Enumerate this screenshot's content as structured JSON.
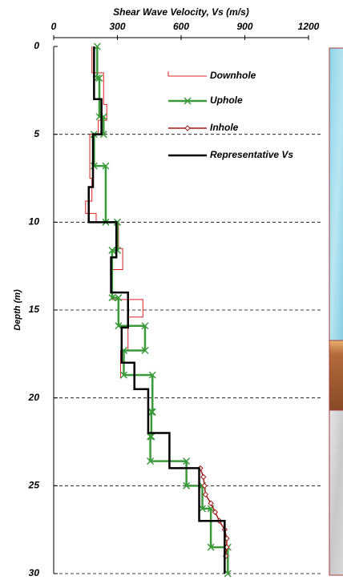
{
  "chart_data": {
    "type": "line",
    "title": "Shear Wave Velocity, Vs (m/s)",
    "y_label": "Depth (m)",
    "xlim": [
      0,
      1200
    ],
    "xticks": [
      0,
      300,
      600,
      900,
      1200
    ],
    "ylim": [
      0,
      30
    ],
    "yticks": [
      0,
      5,
      10,
      15,
      20,
      25,
      30
    ],
    "y_inverted": true,
    "x_axis_top": true,
    "grid": true,
    "legend": "upper right",
    "series": [
      {
        "name": "Downhole",
        "color": "#e02020",
        "width": 1,
        "marker": "none",
        "x": [
          180,
          180,
          235,
          235,
          250,
          250,
          210,
          210,
          170,
          170,
          180,
          180,
          150,
          150,
          200,
          200,
          305,
          305,
          325,
          325,
          275,
          275,
          420,
          420,
          350,
          350,
          315,
          315
        ],
        "y": [
          0,
          1.5,
          1.5,
          3.3,
          3.3,
          4.2,
          4.2,
          5,
          5,
          7.5,
          7.5,
          8.8,
          8.8,
          9.5,
          9.5,
          10,
          10,
          11.5,
          11.5,
          12.7,
          12.7,
          14.4,
          14.4,
          15.4,
          15.4,
          17.3,
          17.3,
          18.9
        ]
      },
      {
        "name": "Uphole",
        "color": "#3a9a3a",
        "width": 2.5,
        "marker": "x",
        "x": [
          205,
          205,
          215,
          215,
          235,
          235,
          190,
          190,
          245,
          245,
          300,
          300,
          275,
          275,
          305,
          305,
          430,
          430,
          330,
          330,
          465,
          465,
          460,
          460,
          455,
          455,
          625,
          625,
          700,
          700,
          740,
          740,
          820,
          820
        ],
        "y": [
          0,
          1.8,
          1.8,
          4,
          4,
          5,
          5,
          6.8,
          6.8,
          10,
          10,
          11.6,
          11.6,
          14.3,
          14.3,
          15.9,
          15.9,
          17.3,
          17.3,
          18.7,
          18.7,
          20.8,
          20.8,
          22.2,
          22.2,
          23.6,
          23.6,
          25,
          25,
          26.3,
          26.3,
          28.5,
          28.5,
          30
        ]
      },
      {
        "name": "Inhole",
        "color": "#a01818",
        "width": 1.5,
        "marker": "diamond",
        "x": [
          690,
          705,
          710,
          715,
          740,
          760,
          780,
          805,
          815,
          815,
          810
        ],
        "y": [
          24,
          24.5,
          25,
          25.5,
          26,
          26.5,
          27,
          27.5,
          28,
          28.5,
          29
        ]
      },
      {
        "name": "Representative Vs",
        "color": "#000000",
        "width": 2.5,
        "marker": "none",
        "x": [
          190,
          190,
          225,
          225,
          185,
          185,
          165,
          165,
          295,
          295,
          270,
          270,
          350,
          350,
          320,
          320,
          380,
          380,
          445,
          445,
          545,
          545,
          685,
          685,
          805,
          805
        ],
        "y": [
          0,
          3,
          3,
          5,
          5,
          8,
          8,
          10,
          10,
          12,
          12,
          14,
          14,
          16,
          16,
          18,
          18,
          19.5,
          19.5,
          22,
          22,
          24,
          24,
          27,
          27,
          30
        ]
      }
    ]
  }
}
